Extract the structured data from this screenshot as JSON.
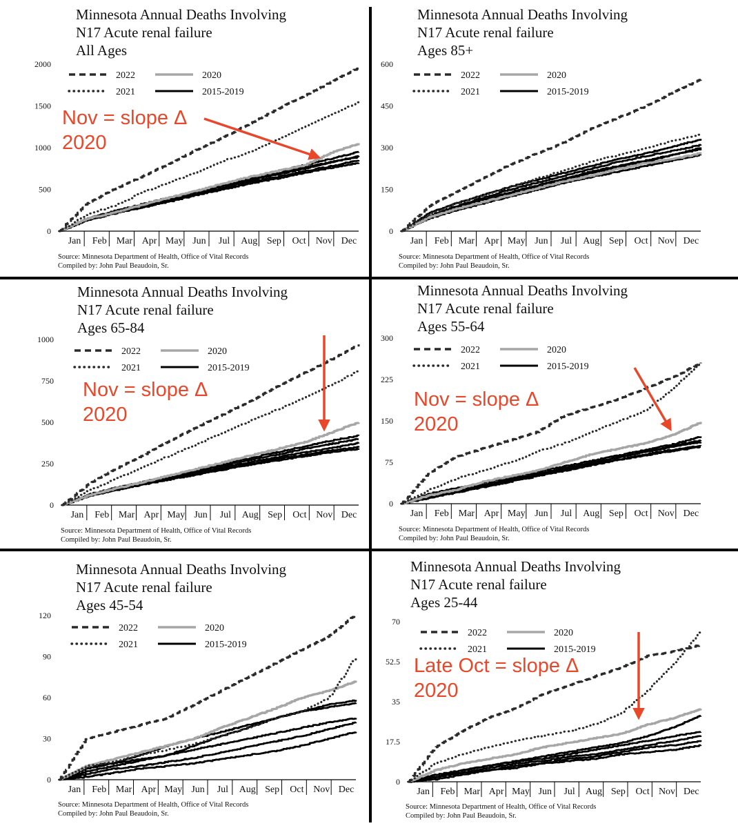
{
  "chart_data": [
    {
      "type": "line",
      "title": [
        "Minnesota Annual Deaths Involving",
        "N17 Acute renal failure",
        "All Ages"
      ],
      "categories": [
        "Jan",
        "Feb",
        "Mar",
        "Apr",
        "May",
        "Jun",
        "Jul",
        "Aug",
        "Sep",
        "Oct",
        "Nov",
        "Dec"
      ],
      "ylim": [
        0,
        2000
      ],
      "yticks": [
        "0",
        "500",
        "1000",
        "1500",
        "2000"
      ],
      "legend": [
        "2022",
        "2020",
        "2021",
        "2015-2019"
      ],
      "source": [
        "Source:  Minnesota Department of Health, Office of Vital Records",
        "Compiled by:  John Paul Beaudoin, Sr."
      ],
      "annotation": [
        "Nov = slope Δ",
        "2020"
      ],
      "series": [
        {
          "name": "2022",
          "style": "dashed",
          "values": [
            0,
            330,
            500,
            650,
            800,
            970,
            1120,
            1290,
            1460,
            1620,
            1790,
            1960
          ]
        },
        {
          "name": "2021",
          "style": "dotted",
          "values": [
            0,
            200,
            300,
            460,
            580,
            700,
            840,
            950,
            1090,
            1250,
            1400,
            1550
          ]
        },
        {
          "name": "2020",
          "style": "gray",
          "values": [
            0,
            150,
            220,
            310,
            400,
            480,
            570,
            650,
            720,
            790,
            940,
            1050
          ]
        },
        {
          "name": "2015",
          "style": "solid",
          "values": [
            0,
            140,
            230,
            300,
            380,
            460,
            540,
            610,
            680,
            750,
            830,
            900
          ]
        },
        {
          "name": "2016",
          "style": "solid",
          "values": [
            0,
            135,
            215,
            290,
            370,
            440,
            520,
            590,
            650,
            720,
            780,
            850
          ]
        },
        {
          "name": "2017",
          "style": "solid",
          "values": [
            0,
            150,
            240,
            320,
            400,
            480,
            560,
            640,
            720,
            790,
            870,
            950
          ]
        },
        {
          "name": "2018",
          "style": "solid",
          "values": [
            0,
            130,
            210,
            280,
            350,
            430,
            500,
            570,
            630,
            700,
            760,
            820
          ]
        },
        {
          "name": "2019",
          "style": "solid",
          "values": [
            0,
            140,
            225,
            305,
            385,
            465,
            545,
            620,
            695,
            765,
            830,
            890
          ]
        }
      ]
    },
    {
      "type": "line",
      "title": [
        "Minnesota Annual Deaths Involving",
        "N17 Acute renal failure",
        "Ages 85+"
      ],
      "categories": [
        "Jan",
        "Feb",
        "Mar",
        "Apr",
        "May",
        "Jun",
        "Jul",
        "Aug",
        "Sep",
        "Oct",
        "Nov",
        "Dec"
      ],
      "ylim": [
        0,
        600
      ],
      "yticks": [
        "0",
        "150",
        "300",
        "450",
        "600"
      ],
      "legend": [
        "2022",
        "2020",
        "2021",
        "2015-2019"
      ],
      "source": [
        "Source:  Minnesota Department of Health, Office of Vital Records",
        "Compiled by:  John Paul Beaudoin, Sr."
      ],
      "series": [
        {
          "name": "2022",
          "style": "dashed",
          "values": [
            0,
            90,
            140,
            190,
            240,
            280,
            320,
            370,
            410,
            450,
            500,
            545
          ]
        },
        {
          "name": "2021",
          "style": "dotted",
          "values": [
            0,
            60,
            100,
            130,
            160,
            190,
            220,
            250,
            275,
            300,
            325,
            350
          ]
        },
        {
          "name": "2020",
          "style": "gray",
          "values": [
            0,
            50,
            80,
            105,
            130,
            155,
            180,
            200,
            225,
            245,
            260,
            280
          ]
        },
        {
          "name": "2015",
          "style": "solid",
          "values": [
            0,
            65,
            100,
            130,
            160,
            185,
            210,
            235,
            260,
            280,
            305,
            330
          ]
        },
        {
          "name": "2016",
          "style": "solid",
          "values": [
            0,
            55,
            90,
            120,
            150,
            175,
            200,
            225,
            250,
            270,
            290,
            310
          ]
        },
        {
          "name": "2017",
          "style": "solid",
          "values": [
            0,
            50,
            80,
            110,
            135,
            160,
            185,
            210,
            230,
            250,
            275,
            300
          ]
        },
        {
          "name": "2018",
          "style": "solid",
          "values": [
            0,
            45,
            75,
            100,
            125,
            150,
            175,
            195,
            215,
            235,
            255,
            275
          ]
        },
        {
          "name": "2019",
          "style": "solid",
          "values": [
            0,
            50,
            85,
            115,
            140,
            165,
            190,
            215,
            235,
            255,
            275,
            295
          ]
        }
      ]
    },
    {
      "type": "line",
      "title": [
        "Minnesota Annual Deaths Involving",
        "N17 Acute renal failure",
        "Ages 65-84"
      ],
      "categories": [
        "Jan",
        "Feb",
        "Mar",
        "Apr",
        "May",
        "Jun",
        "Jul",
        "Aug",
        "Sep",
        "Oct",
        "Nov",
        "Dec"
      ],
      "ylim": [
        0,
        1000
      ],
      "yticks": [
        "0",
        "250",
        "500",
        "750",
        "1000"
      ],
      "legend": [
        "2022",
        "2020",
        "2021",
        "2015-2019"
      ],
      "source": [
        "Source:  Minnesota Department of Health, Office of Vital Records",
        "Compiled by:  John Paul Beaudoin, Sr."
      ],
      "annotation": [
        "Nov = slope Δ",
        "2020"
      ],
      "series": [
        {
          "name": "2022",
          "style": "dashed",
          "values": [
            0,
            130,
            220,
            300,
            390,
            470,
            550,
            630,
            720,
            800,
            880,
            970
          ]
        },
        {
          "name": "2021",
          "style": "dotted",
          "values": [
            0,
            90,
            160,
            230,
            300,
            370,
            440,
            510,
            580,
            650,
            730,
            810
          ]
        },
        {
          "name": "2020",
          "style": "gray",
          "values": [
            0,
            60,
            100,
            140,
            180,
            220,
            260,
            300,
            340,
            380,
            440,
            500
          ]
        },
        {
          "name": "2015",
          "style": "solid",
          "values": [
            0,
            60,
            100,
            140,
            175,
            210,
            250,
            285,
            320,
            355,
            390,
            420
          ]
        },
        {
          "name": "2016",
          "style": "solid",
          "values": [
            0,
            65,
            105,
            140,
            170,
            205,
            240,
            275,
            305,
            340,
            370,
            400
          ]
        },
        {
          "name": "2017",
          "style": "solid",
          "values": [
            0,
            55,
            95,
            130,
            160,
            190,
            220,
            250,
            280,
            305,
            330,
            350
          ]
        },
        {
          "name": "2018",
          "style": "solid",
          "values": [
            0,
            55,
            90,
            125,
            155,
            185,
            215,
            245,
            270,
            295,
            320,
            340
          ]
        },
        {
          "name": "2019",
          "style": "solid",
          "values": [
            0,
            60,
            100,
            135,
            165,
            195,
            230,
            260,
            290,
            320,
            345,
            375
          ]
        }
      ]
    },
    {
      "type": "line",
      "title": [
        "Minnesota Annual Deaths Involving",
        "N17 Acute renal failure",
        "Ages 55-64"
      ],
      "categories": [
        "Jan",
        "Feb",
        "Mar",
        "Apr",
        "May",
        "Jun",
        "Jul",
        "Aug",
        "Sep",
        "Oct",
        "Nov",
        "Dec"
      ],
      "ylim": [
        0,
        300
      ],
      "yticks": [
        "0",
        "75",
        "150",
        "225",
        "300"
      ],
      "legend": [
        "2022",
        "2020",
        "2021",
        "2015-2019"
      ],
      "source": [
        "Source:  Minnesota Department of Health, Office of Vital Records",
        "Compiled by:  John Paul Beaudoin, Sr."
      ],
      "annotation": [
        "Nov = slope Δ",
        "2020"
      ],
      "series": [
        {
          "name": "2022",
          "style": "dashed",
          "values": [
            0,
            55,
            85,
            100,
            115,
            130,
            160,
            175,
            190,
            210,
            230,
            255
          ]
        },
        {
          "name": "2021",
          "style": "dotted",
          "values": [
            0,
            25,
            45,
            60,
            75,
            95,
            110,
            130,
            150,
            170,
            210,
            255
          ]
        },
        {
          "name": "2020",
          "style": "gray",
          "values": [
            0,
            15,
            25,
            40,
            50,
            60,
            75,
            90,
            100,
            110,
            125,
            148
          ]
        },
        {
          "name": "2015",
          "style": "solid",
          "values": [
            0,
            15,
            25,
            35,
            45,
            55,
            65,
            75,
            85,
            95,
            105,
            115
          ]
        },
        {
          "name": "2016",
          "style": "solid",
          "values": [
            0,
            18,
            28,
            38,
            48,
            58,
            68,
            78,
            88,
            98,
            108,
            122
          ]
        },
        {
          "name": "2017",
          "style": "solid",
          "values": [
            0,
            12,
            22,
            32,
            42,
            52,
            62,
            72,
            80,
            88,
            96,
            103
          ]
        },
        {
          "name": "2018",
          "style": "solid",
          "values": [
            0,
            14,
            24,
            34,
            44,
            54,
            64,
            74,
            84,
            94,
            104,
            112
          ]
        },
        {
          "name": "2019",
          "style": "solid",
          "values": [
            0,
            10,
            20,
            30,
            40,
            50,
            60,
            70,
            80,
            90,
            98,
            105
          ]
        }
      ]
    },
    {
      "type": "line",
      "title": [
        "Minnesota Annual Deaths Involving",
        "N17 Acute renal failure",
        "Ages 45-54"
      ],
      "categories": [
        "Jan",
        "Feb",
        "Mar",
        "Apr",
        "May",
        "Jun",
        "Jul",
        "Aug",
        "Sep",
        "Oct",
        "Nov",
        "Dec"
      ],
      "ylim": [
        0,
        120
      ],
      "yticks": [
        "0",
        "30",
        "60",
        "90",
        "120"
      ],
      "legend": [
        "2022",
        "2020",
        "2021",
        "2015-2019"
      ],
      "source": [
        "Source:  Minnesota Department of Health, Office of Vital Records",
        "Compiled by:  John Paul Beaudoin, Sr."
      ],
      "series": [
        {
          "name": "2022",
          "style": "dashed",
          "values": [
            0,
            30,
            35,
            40,
            45,
            55,
            65,
            75,
            85,
            95,
            105,
            121
          ]
        },
        {
          "name": "2021",
          "style": "dotted",
          "values": [
            0,
            10,
            13,
            18,
            22,
            26,
            32,
            38,
            45,
            50,
            60,
            90
          ]
        },
        {
          "name": "2020",
          "style": "gray",
          "values": [
            0,
            10,
            15,
            20,
            25,
            30,
            38,
            45,
            52,
            60,
            65,
            72
          ]
        },
        {
          "name": "2015",
          "style": "solid",
          "values": [
            0,
            10,
            12,
            18,
            25,
            30,
            35,
            40,
            45,
            50,
            55,
            58
          ]
        },
        {
          "name": "2016",
          "style": "solid",
          "values": [
            0,
            8,
            12,
            15,
            18,
            25,
            32,
            38,
            45,
            50,
            53,
            56
          ]
        },
        {
          "name": "2017",
          "style": "solid",
          "values": [
            0,
            6,
            10,
            14,
            18,
            22,
            26,
            30,
            34,
            38,
            42,
            45
          ]
        },
        {
          "name": "2018",
          "style": "solid",
          "values": [
            0,
            4,
            8,
            10,
            13,
            16,
            20,
            24,
            28,
            32,
            37,
            42
          ]
        },
        {
          "name": "2019",
          "style": "solid",
          "values": [
            0,
            2,
            5,
            8,
            10,
            12,
            15,
            18,
            21,
            25,
            30,
            35
          ]
        }
      ]
    },
    {
      "type": "line",
      "title": [
        "Minnesota Annual Deaths Involving",
        "N17 Acute renal failure",
        "Ages 25-44"
      ],
      "categories": [
        "Jan",
        "Feb",
        "Mar",
        "Apr",
        "May",
        "Jun",
        "Jul",
        "Aug",
        "Sep",
        "Oct",
        "Nov",
        "Dec"
      ],
      "ylim": [
        0,
        70
      ],
      "yticks": [
        "0",
        "17.5",
        "35",
        "52.5",
        "70"
      ],
      "legend": [
        "2022",
        "2020",
        "2021",
        "2015-2019"
      ],
      "source": [
        "Source:  Minnesota Department of Health, Office of Vital Records",
        "Compiled by:  John Paul Beaudoin, Sr."
      ],
      "annotation": [
        "Late Oct = slope Δ",
        "2020"
      ],
      "series": [
        {
          "name": "2022",
          "style": "dashed",
          "values": [
            0,
            15,
            22,
            28,
            32,
            38,
            42,
            46,
            50,
            55,
            57,
            60
          ]
        },
        {
          "name": "2021",
          "style": "dotted",
          "values": [
            0,
            8,
            12,
            15,
            18,
            20,
            22,
            25,
            30,
            40,
            52,
            66
          ]
        },
        {
          "name": "2020",
          "style": "gray",
          "values": [
            0,
            5,
            8,
            10,
            12,
            15,
            17,
            19,
            21,
            25,
            28,
            32
          ]
        },
        {
          "name": "2015",
          "style": "solid",
          "values": [
            0,
            2,
            5,
            7,
            9,
            11,
            13,
            15,
            17,
            20,
            24,
            29
          ]
        },
        {
          "name": "2016",
          "style": "solid",
          "values": [
            0,
            3,
            5,
            7,
            9,
            10,
            12,
            14,
            16,
            18,
            20,
            22
          ]
        },
        {
          "name": "2017",
          "style": "solid",
          "values": [
            0,
            2,
            4,
            6,
            8,
            9,
            11,
            12,
            14,
            16,
            18,
            20
          ]
        },
        {
          "name": "2018",
          "style": "solid",
          "values": [
            0,
            1,
            3,
            5,
            7,
            8,
            10,
            11,
            13,
            15,
            16,
            18
          ]
        },
        {
          "name": "2019",
          "style": "solid",
          "values": [
            0,
            2,
            4,
            5,
            6,
            8,
            9,
            10,
            12,
            13,
            14,
            16
          ]
        }
      ]
    }
  ]
}
